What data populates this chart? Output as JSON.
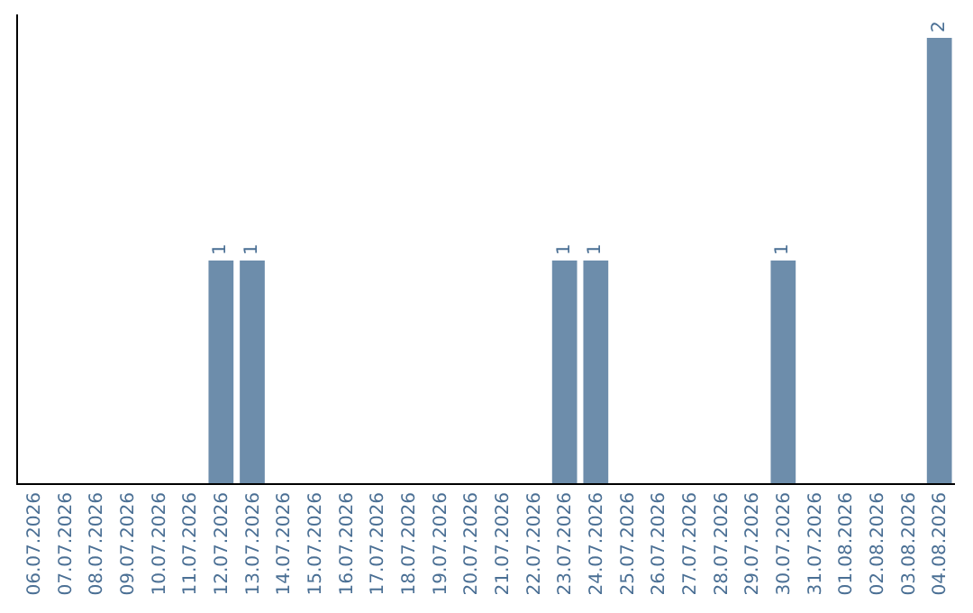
{
  "chart_data": {
    "type": "bar",
    "categories": [
      "06.07.2026",
      "07.07.2026",
      "08.07.2026",
      "09.07.2026",
      "10.07.2026",
      "11.07.2026",
      "12.07.2026",
      "13.07.2026",
      "14.07.2026",
      "15.07.2026",
      "16.07.2026",
      "17.07.2026",
      "18.07.2026",
      "19.07.2026",
      "20.07.2026",
      "21.07.2026",
      "22.07.2026",
      "23.07.2026",
      "24.07.2026",
      "25.07.2026",
      "26.07.2026",
      "27.07.2026",
      "28.07.2026",
      "29.07.2026",
      "30.07.2026",
      "31.07.2026",
      "01.08.2026",
      "02.08.2026",
      "03.08.2026",
      "04.08.2026"
    ],
    "values": [
      0,
      0,
      0,
      0,
      0,
      0,
      1,
      1,
      0,
      0,
      0,
      0,
      0,
      0,
      0,
      0,
      0,
      1,
      1,
      0,
      0,
      0,
      0,
      0,
      1,
      0,
      0,
      0,
      0,
      2
    ],
    "value_labels": [
      null,
      null,
      null,
      null,
      null,
      null,
      "1",
      "1",
      null,
      null,
      null,
      null,
      null,
      null,
      null,
      null,
      null,
      "1",
      "1",
      null,
      null,
      null,
      null,
      null,
      "1",
      null,
      null,
      null,
      null,
      "2"
    ],
    "color": "#6d8dab",
    "tick_labels": "x",
    "grid": false,
    "legend": false
  }
}
